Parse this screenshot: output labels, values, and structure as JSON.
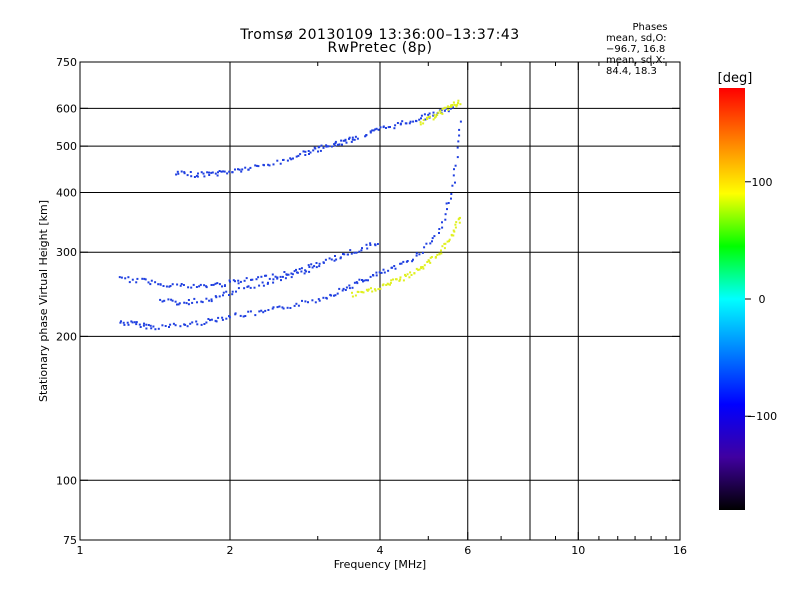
{
  "header": {
    "title": "Tromsø 20130109 13:36:00–13:37:43",
    "subtitle": "RwPretec (8p)"
  },
  "phase_stats": {
    "title": "Phases",
    "line1": "mean, sd,O: −96.7, 16.8",
    "line2": "mean, sd,X:  84.4, 18.3"
  },
  "chart_data": {
    "type": "scatter",
    "title": "Tromsø 20130109 13:36:00–13:37:43",
    "subtitle": "RwPretec (8p)",
    "xlabel": "Frequency [MHz]",
    "ylabel": "Stationary phase Virtual Height [km]",
    "x_scale": "log",
    "y_scale": "log",
    "xlim": [
      1,
      16
    ],
    "ylim": [
      75,
      750
    ],
    "x_ticks": [
      1,
      2,
      4,
      6,
      10,
      16
    ],
    "x_tick_labels": [
      "1",
      "2",
      "4",
      "6",
      "10",
      "16"
    ],
    "x_minor_ticks": [
      3,
      5,
      7,
      8,
      9,
      11,
      12,
      13,
      14,
      15
    ],
    "y_ticks": [
      75,
      100,
      200,
      300,
      400,
      500,
      600,
      750
    ],
    "y_tick_labels": [
      "75",
      "100",
      "200",
      "300",
      "400",
      "500",
      "600",
      "750"
    ],
    "v_grid": [
      2,
      4,
      6,
      8,
      10
    ],
    "h_grid": [
      100,
      200,
      300,
      400,
      500,
      600
    ],
    "colorbar": {
      "label": "[deg]",
      "range": [
        -180,
        180
      ],
      "ticks": [
        100,
        0,
        -100
      ],
      "tick_labels": [
        "100",
        "0",
        "−100"
      ],
      "colors": [
        "#ff0000",
        "#ff8000",
        "#ffff00",
        "#00ff00",
        "#00ffff",
        "#0080ff",
        "#0000ff",
        "#4000a0",
        "#000000"
      ]
    },
    "series": [
      {
        "name": "O",
        "color": "#2040e0",
        "traces": [
          {
            "x": [
              1.2,
              1.3,
              1.4,
              1.6,
              1.8,
              2.0,
              2.3,
              2.6,
              3.0,
              3.3,
              3.6,
              3.9,
              4.3,
              4.8,
              5.3,
              5.6,
              5.8
            ],
            "y": [
              215,
              213,
              210,
              212,
              216,
              222,
              225,
              232,
              240,
              250,
              260,
              270,
              280,
              300,
              340,
              420,
              580
            ]
          },
          {
            "x": [
              1.55,
              1.7,
              1.85,
              2.0,
              2.2,
              2.5,
              2.8,
              3.0,
              3.2,
              3.4,
              3.6
            ],
            "y": [
              440,
              438,
              440,
              445,
              452,
              465,
              485,
              495,
              505,
              515,
              525
            ]
          },
          {
            "x": [
              3.7,
              4.0,
              4.4,
              4.8,
              5.2,
              5.6
            ],
            "y": [
              530,
              545,
              560,
              575,
              590,
              605
            ]
          },
          {
            "x": [
              1.2,
              1.35,
              1.5,
              1.7,
              1.9,
              2.1,
              2.4,
              2.7,
              3.0,
              3.3,
              3.6,
              4.0
            ],
            "y": [
              265,
              262,
              258,
              255,
              258,
              262,
              268,
              275,
              285,
              295,
              305,
              318
            ]
          },
          {
            "x": [
              1.45,
              1.6,
              1.8,
              2.0,
              2.3,
              2.6,
              3.0
            ],
            "y": [
              238,
              236,
              240,
              248,
              258,
              268,
              280
            ]
          }
        ]
      },
      {
        "name": "X",
        "color": "#e0f020",
        "traces": [
          {
            "x": [
              3.5,
              3.8,
              4.1,
              4.4,
              4.7,
              5.0,
              5.3,
              5.6,
              5.8
            ],
            "y": [
              245,
              250,
              258,
              265,
              275,
              288,
              305,
              330,
              360
            ]
          },
          {
            "x": [
              4.8,
              5.1,
              5.4,
              5.6,
              5.8
            ],
            "y": [
              560,
              580,
              600,
              612,
              620
            ]
          }
        ]
      }
    ]
  }
}
